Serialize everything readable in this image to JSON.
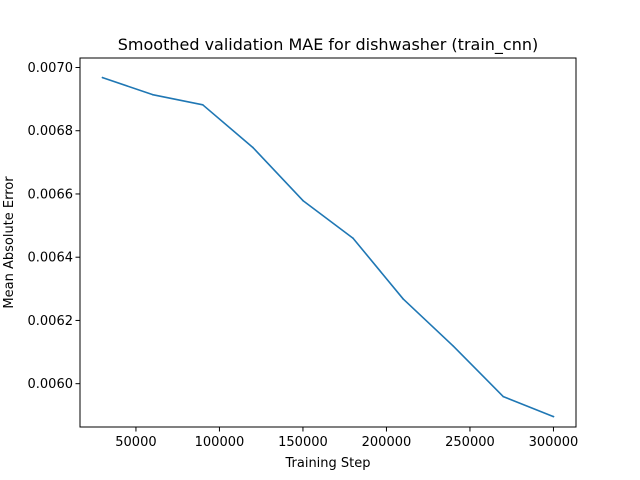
{
  "chart_data": {
    "type": "line",
    "title": "Smoothed validation MAE for dishwasher (train_cnn)",
    "xlabel": "Training Step",
    "ylabel": "Mean Absolute Error",
    "xlim": [
      16500,
      313500
    ],
    "ylim": [
      0.005863,
      0.00703
    ],
    "xticks": [
      50000,
      100000,
      150000,
      200000,
      250000,
      300000
    ],
    "xtick_labels": [
      "50000",
      "100000",
      "150000",
      "200000",
      "250000",
      "300000"
    ],
    "yticks": [
      0.006,
      0.0062,
      0.0064,
      0.0066,
      0.0068,
      0.007
    ],
    "ytick_labels": [
      "0.0060",
      "0.0062",
      "0.0064",
      "0.0066",
      "0.0068",
      "0.0070"
    ],
    "grid": false,
    "legend": "none",
    "series": [
      {
        "color": "#1f77b4",
        "x": [
          30000,
          60000,
          90000,
          120000,
          150000,
          180000,
          210000,
          240000,
          270000,
          300000
        ],
        "y": [
          0.006968,
          0.006914,
          0.006882,
          0.006747,
          0.006579,
          0.00646,
          0.006268,
          0.006119,
          0.005959,
          0.005896
        ]
      }
    ]
  }
}
